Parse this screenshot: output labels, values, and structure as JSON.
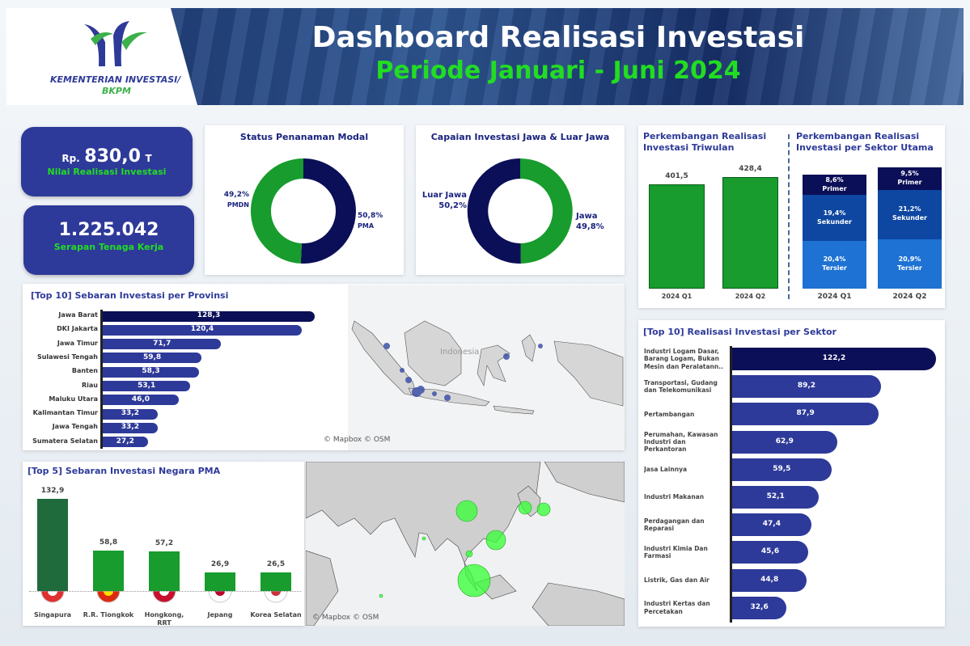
{
  "header": {
    "title": "Dashboard Realisasi Investasi",
    "subtitle": "Periode Januari - Juni 2024",
    "logo_line1": "KEMENTERIAN INVESTASI/",
    "logo_line2": "BKPM"
  },
  "kpis": [
    {
      "prefix": "Rp.",
      "value": "830,0",
      "unit": "T",
      "label": "Nilai Realisasi Investasi"
    },
    {
      "value": "1.225.042",
      "label": "Serapan Tenaga Kerja"
    }
  ],
  "chart_data": [
    {
      "type": "pie",
      "title": "Status Penanaman Modal",
      "categories": [
        "PMA",
        "PMDN"
      ],
      "values": [
        50.8,
        49.2
      ],
      "value_labels": [
        "50,8%",
        "49,2%"
      ],
      "colors": [
        "#0b0f57",
        "#179c2d"
      ]
    },
    {
      "type": "pie",
      "title": "Capaian Investasi Jawa & Luar Jawa",
      "categories": [
        "Jawa",
        "Luar Jawa"
      ],
      "values": [
        49.8,
        50.2
      ],
      "value_labels": [
        "49,8%",
        "50,2%"
      ],
      "colors": [
        "#179c2d",
        "#0b0f57"
      ]
    },
    {
      "type": "bar",
      "title": "Perkembangan Realisasi Investasi Triwulan",
      "categories": [
        "2024 Q1",
        "2024 Q2"
      ],
      "values": [
        401.5,
        428.4
      ],
      "value_labels": [
        "401,5",
        "428,4"
      ],
      "color": "#179c2d"
    },
    {
      "type": "stacked_bar",
      "title": "Perkembangan Realisasi Investasi per Sektor Utama",
      "categories": [
        "2024 Q1",
        "2024 Q2"
      ],
      "series": [
        {
          "name": "Tersier",
          "color": "#1d72d3",
          "values": [
            20.4,
            20.9
          ],
          "value_labels": [
            "20,4%",
            "20,9%"
          ]
        },
        {
          "name": "Sekunder",
          "color": "#0d47a1",
          "values": [
            19.4,
            21.2
          ],
          "value_labels": [
            "19,4%",
            "21,2%"
          ]
        },
        {
          "name": "Primer",
          "color": "#0b0f57",
          "values": [
            8.6,
            9.5
          ],
          "value_labels": [
            "8,6%",
            "9,5%"
          ]
        }
      ]
    },
    {
      "type": "hbar",
      "title": "[Top 10] Sebaran Investasi per Provinsi",
      "categories": [
        "Jawa Barat",
        "DKI Jakarta",
        "Jawa Timur",
        "Sulawesi Tengah",
        "Banten",
        "Riau",
        "Maluku Utara",
        "Kalimantan Timur",
        "Jawa Tengah",
        "Sumatera Selatan"
      ],
      "values": [
        128.3,
        120.4,
        71.7,
        59.8,
        58.3,
        53.1,
        46.0,
        33.2,
        33.2,
        27.2
      ],
      "value_labels": [
        "128,3",
        "120,4",
        "71,7",
        "59,8",
        "58,3",
        "53,1",
        "46,0",
        "33,2",
        "33,2",
        "27,2"
      ],
      "colors": [
        "#0b0f57",
        "#2e3a99",
        "#2e3a99",
        "#2e3a99",
        "#2e3a99",
        "#2e3a99",
        "#2e3a99",
        "#2e3a99",
        "#2e3a99",
        "#2e3a99"
      ],
      "map_label": "Indonesia",
      "attribution": "© Mapbox © OSM"
    },
    {
      "type": "bar",
      "title": "[Top 5] Sebaran Investasi Negara PMA",
      "categories": [
        "Singapura",
        "R.R. Tiongkok",
        "Hongkong, RRT",
        "Jepang",
        "Korea Selatan"
      ],
      "values": [
        132.9,
        58.8,
        57.2,
        26.9,
        26.5
      ],
      "value_labels": [
        "132,9",
        "58,8",
        "57,2",
        "26,9",
        "26,5"
      ],
      "colors": [
        "#1f6b3b",
        "#179c2d",
        "#179c2d",
        "#179c2d",
        "#179c2d"
      ],
      "attribution": "© Mapbox © OSM"
    },
    {
      "type": "hbar",
      "title": "[Top 10] Realisasi Investasi per Sektor",
      "categories": [
        "Industri Logam Dasar, Barang Logam, Bukan Mesin dan Peralatann..",
        "Transportasi, Gudang dan Telekomunikasi",
        "Pertambangan",
        "Perumahan, Kawasan Industri dan Perkantoran",
        "Jasa Lainnya",
        "Industri Makanan",
        "Perdagangan dan Reparasi",
        "Industri Kimia Dan Farmasi",
        "Listrik, Gas dan Air",
        "Industri Kertas dan Percetakan"
      ],
      "values": [
        122.2,
        89.2,
        87.9,
        62.9,
        59.5,
        52.1,
        47.4,
        45.6,
        44.8,
        32.6
      ],
      "value_labels": [
        "122,2",
        "89,2",
        "87,9",
        "62,9",
        "59,5",
        "52,1",
        "47,4",
        "45,6",
        "44,8",
        "32,6"
      ],
      "colors": [
        "#0b0f57",
        "#2e3a99",
        "#2e3a99",
        "#2e3a99",
        "#2e3a99",
        "#2e3a99",
        "#2e3a99",
        "#2e3a99",
        "#2e3a99",
        "#2e3a99"
      ]
    }
  ]
}
